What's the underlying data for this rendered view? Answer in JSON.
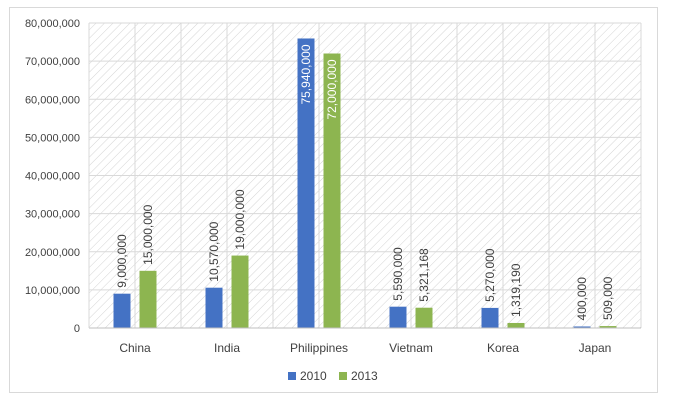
{
  "chart_data": {
    "type": "bar",
    "title": "",
    "xlabel": "",
    "ylabel": "",
    "ylim": [
      0,
      80000000
    ],
    "yticks": [
      0,
      10000000,
      20000000,
      30000000,
      40000000,
      50000000,
      60000000,
      70000000,
      80000000
    ],
    "ytick_labels": [
      "0",
      "10,000,000",
      "20,000,000",
      "30,000,000",
      "40,000,000",
      "50,000,000",
      "60,000,000",
      "70,000,000",
      "80,000,000"
    ],
    "categories": [
      "China",
      "India",
      "Philippines",
      "Vietnam",
      "Korea",
      "Japan"
    ],
    "series": [
      {
        "name": "2010",
        "color": "#4472c4",
        "values": [
          9000000,
          10570000,
          75940000,
          5590000,
          5270000,
          400000
        ],
        "labels": [
          "9,000,000",
          "10,570,000",
          "75,940,000",
          "5,590,000",
          "5,270,000",
          "400,000"
        ]
      },
      {
        "name": "2013",
        "color": "#8db550",
        "values": [
          15000000,
          19000000,
          72000000,
          5321168,
          1319190,
          509000
        ],
        "labels": [
          "15,000,000",
          "19,000,000",
          "72,000,000",
          "5,321,168",
          "1,319,190",
          "509,000"
        ]
      }
    ],
    "grid": true,
    "legend": "bottom"
  }
}
